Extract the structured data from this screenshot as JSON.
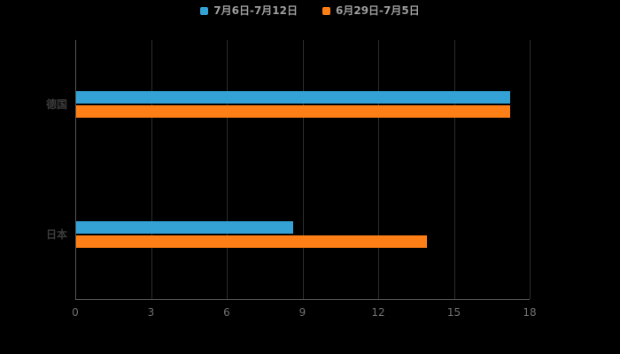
{
  "chart_data": {
    "type": "bar",
    "orientation": "horizontal",
    "title": "",
    "categories": [
      "德国",
      "日本"
    ],
    "series": [
      {
        "name": "7月6日-7月12日",
        "color": "#35A2D6",
        "values": [
          17.2,
          8.6
        ]
      },
      {
        "name": "6月29日-7月5日",
        "color": "#FF7F17",
        "values": [
          17.2,
          13.9
        ]
      }
    ],
    "xlabel": "",
    "ylabel": "",
    "xlim": [
      0,
      18
    ],
    "xticks": [
      "0",
      "3",
      "6",
      "9",
      "12",
      "15",
      "18"
    ],
    "grid": true,
    "legend_position": "top",
    "background_color": "#000000",
    "gridline_color": "#2d2d2d",
    "axis_color": "#565656"
  }
}
